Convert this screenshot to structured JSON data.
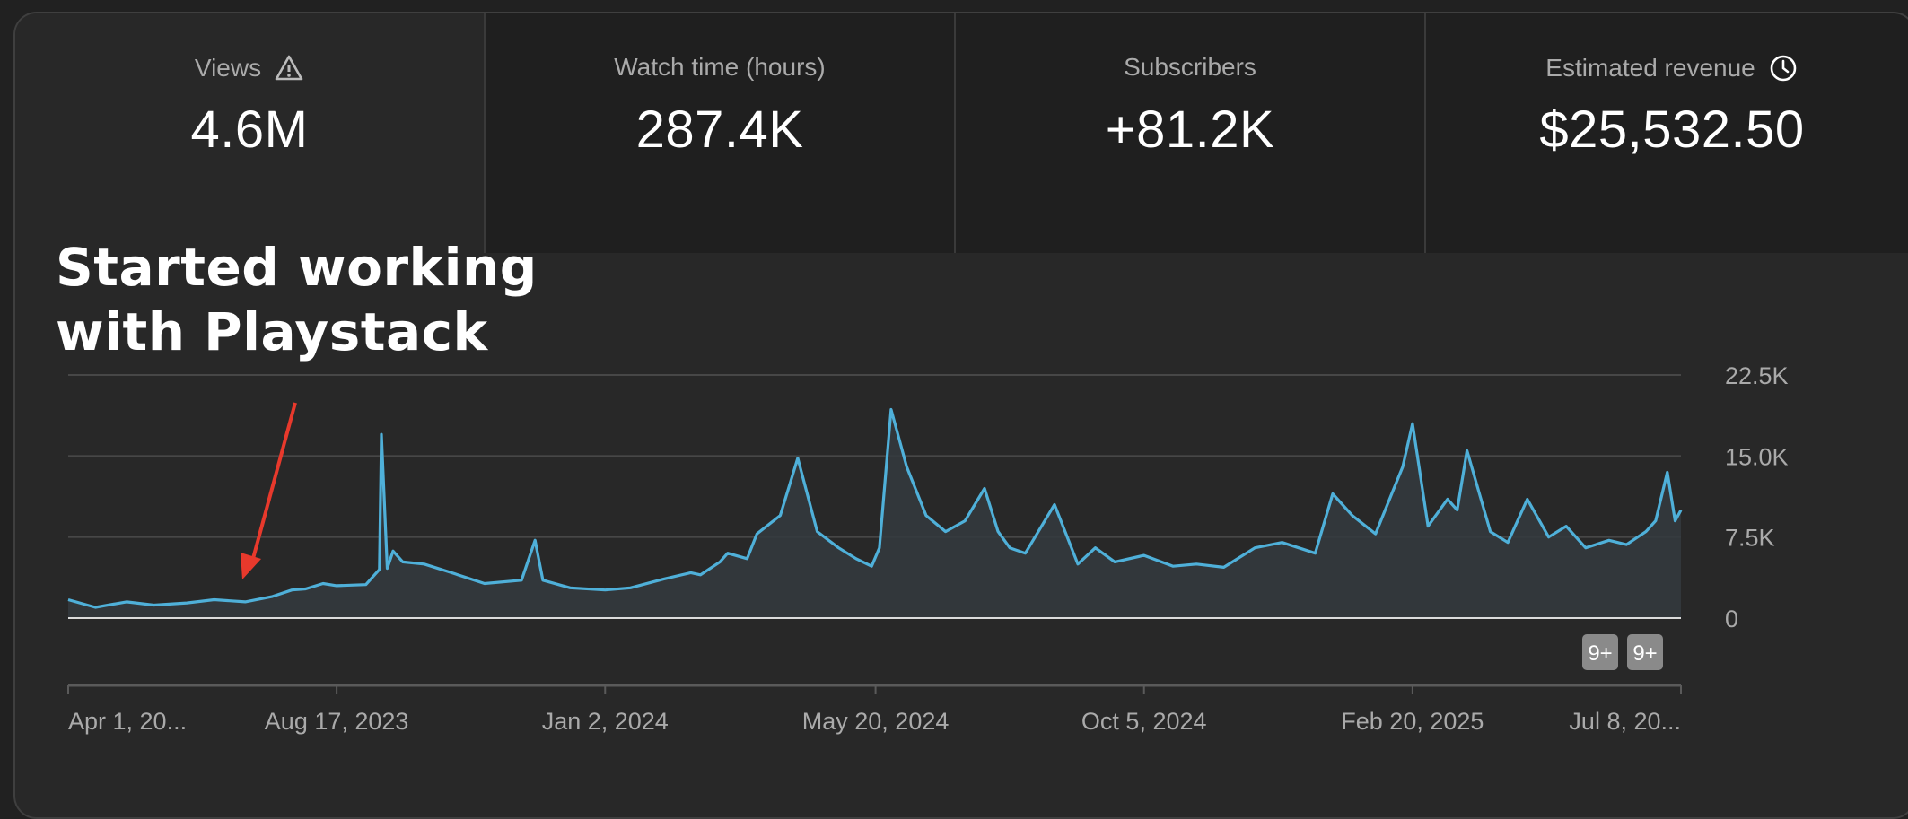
{
  "metrics": [
    {
      "label": "Views",
      "value": "4.6M",
      "icon": "warning-icon"
    },
    {
      "label": "Watch time (hours)",
      "value": "287.4K",
      "icon": ""
    },
    {
      "label": "Subscribers",
      "value": "+81.2K",
      "icon": ""
    },
    {
      "label": "Estimated revenue",
      "value": "$25,532.50",
      "icon": "clock-icon"
    }
  ],
  "annotation": {
    "line1": "Started working",
    "line2": "with Playstack",
    "arrow_color": "#e8392c"
  },
  "badges": [
    "9+",
    "9+"
  ],
  "chart_data": {
    "type": "area",
    "title": "",
    "xlabel": "",
    "ylabel": "",
    "ylim": [
      0,
      22500
    ],
    "y_ticks": [
      "22.5K",
      "15.0K",
      "7.5K",
      "0"
    ],
    "y_tick_values": [
      22500,
      15000,
      7500,
      0
    ],
    "x_ticks": [
      "Apr 1, 20...",
      "Aug 17, 2023",
      "Jan 2, 2024",
      "May 20, 2024",
      "Oct 5, 2024",
      "Feb 20, 2025",
      "Jul 8, 20..."
    ],
    "x_tick_dates": [
      "2023-04-01",
      "2023-08-17",
      "2024-01-02",
      "2024-05-20",
      "2024-10-05",
      "2025-02-20",
      "2025-07-08"
    ],
    "line_color": "#4fb0d9",
    "grid": true,
    "series": [
      {
        "x": [
          "2023-04-01",
          "2023-04-15",
          "2023-05-01",
          "2023-05-15",
          "2023-06-01",
          "2023-06-15",
          "2023-07-01",
          "2023-07-15",
          "2023-07-25",
          "2023-08-01",
          "2023-08-10",
          "2023-08-17",
          "2023-09-01",
          "2023-09-08",
          "2023-09-09",
          "2023-09-12",
          "2023-09-15",
          "2023-09-20",
          "2023-10-01",
          "2023-10-15",
          "2023-11-01",
          "2023-11-20",
          "2023-11-27",
          "2023-12-01",
          "2023-12-15",
          "2024-01-02",
          "2024-01-15",
          "2024-02-01",
          "2024-02-15",
          "2024-02-20",
          "2024-03-01",
          "2024-03-05",
          "2024-03-15",
          "2024-03-20",
          "2024-04-01",
          "2024-04-10",
          "2024-04-20",
          "2024-05-01",
          "2024-05-10",
          "2024-05-18",
          "2024-05-22",
          "2024-05-28",
          "2024-06-05",
          "2024-06-15",
          "2024-06-25",
          "2024-07-05",
          "2024-07-15",
          "2024-07-22",
          "2024-07-28",
          "2024-08-05",
          "2024-08-20",
          "2024-09-01",
          "2024-09-10",
          "2024-09-20",
          "2024-10-05",
          "2024-10-20",
          "2024-11-01",
          "2024-11-15",
          "2024-12-01",
          "2024-12-15",
          "2025-01-01",
          "2025-01-10",
          "2025-01-20",
          "2025-02-01",
          "2025-02-10",
          "2025-02-15",
          "2025-02-20",
          "2025-02-28",
          "2025-03-10",
          "2025-03-15",
          "2025-03-20",
          "2025-04-01",
          "2025-04-10",
          "2025-04-20",
          "2025-05-01",
          "2025-05-10",
          "2025-05-20",
          "2025-06-01",
          "2025-06-10",
          "2025-06-20",
          "2025-06-25",
          "2025-07-01",
          "2025-07-05",
          "2025-07-08"
        ],
        "y": [
          1700,
          1000,
          1500,
          1200,
          1400,
          1700,
          1500,
          2000,
          2600,
          2700,
          3200,
          3000,
          3100,
          4500,
          17000,
          4600,
          6200,
          5200,
          5000,
          4200,
          3200,
          3500,
          7200,
          3500,
          2800,
          2600,
          2800,
          3600,
          4200,
          4000,
          5200,
          6000,
          5500,
          7800,
          9500,
          14800,
          8000,
          6500,
          5500,
          4800,
          6500,
          19300,
          14000,
          9500,
          8000,
          9000,
          12000,
          8000,
          6500,
          6000,
          10500,
          5000,
          6500,
          5200,
          5800,
          4800,
          5000,
          4700,
          6500,
          7000,
          6000,
          11500,
          9500,
          7800,
          11800,
          14000,
          18000,
          8500,
          11000,
          10000,
          15500,
          8000,
          7000,
          11000,
          7500,
          8500,
          6500,
          7200,
          6800,
          8000,
          9000,
          13500,
          9000,
          10000
        ]
      }
    ]
  }
}
